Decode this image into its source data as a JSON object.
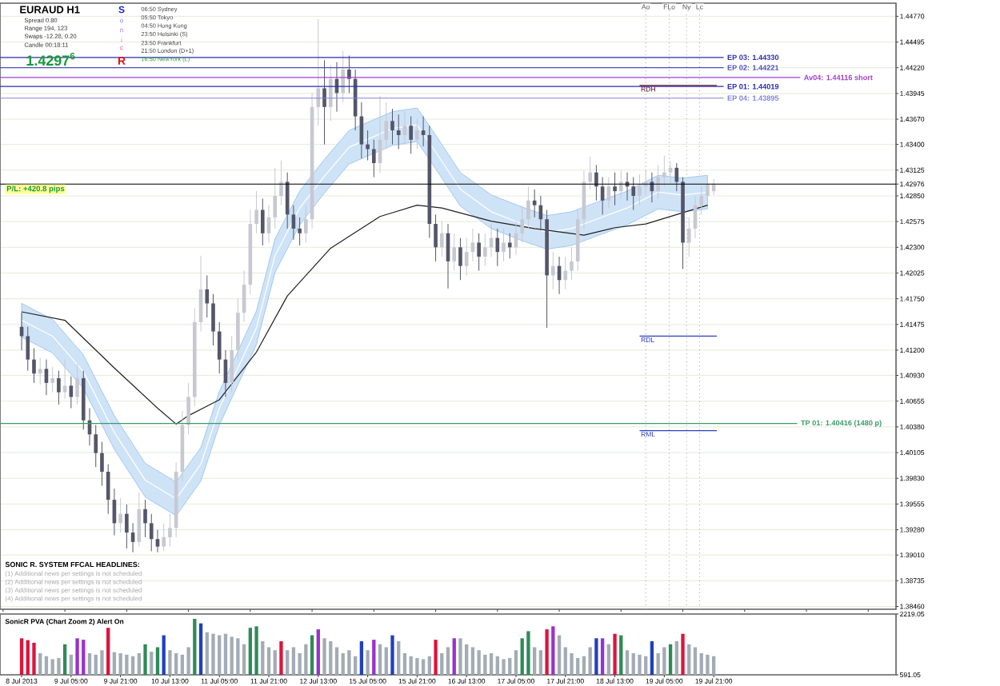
{
  "chart_data": [
    {
      "type": "candlestick",
      "title": "EURAUD  H1",
      "colors": [
        null,
        null,
        null,
        "#55556a",
        "#55556a",
        "#55556a",
        "#c8c8d2",
        "#55556a",
        "#c8c8d2",
        "#55556a",
        "#c8c8d2",
        "#55556a",
        "#c8c8d2",
        "#55556a",
        "#55556a",
        "#55556a",
        "#55556a",
        "#55556a",
        "#55556a",
        "#c8c8d2",
        "#55556a",
        "#55556a",
        "#c8c8d2",
        "#55556a",
        "#55556a",
        "#55556a",
        "#c8c8d2",
        "#c8c8d2",
        "#c8c8d2",
        "#c8c8d2",
        "#c8c8d2",
        "#c8c8d2",
        "#c8c8d2",
        "#55556a",
        "#55556a",
        "#55556a",
        "#55556a",
        "#c8c8d2",
        "#c8c8d2",
        "#c8c8d2",
        "#c8c8d2",
        "#c8c8d2",
        "#55556a",
        "#c8c8d2",
        "#c8c8d2",
        "#c8c8d2",
        "#55556a",
        "#55556a",
        "#55556a",
        "#c8c8d2",
        "#c8c8d2",
        "#c8c8d2",
        "#55556a",
        "#c8c8d2",
        "#55556a",
        "#c8c8d2",
        "#55556a",
        "#55556a",
        "#55556a",
        "#55556a",
        "#55556a",
        "#c8c8d2",
        "#c8c8d2",
        "#55556a",
        "#55556a",
        "#c8c8d2",
        "#55556a",
        "#c8c8d2",
        "#55556a",
        "#55556a",
        "#55556a",
        "#c8c8d2",
        "#55556a",
        "#c8c8d2",
        "#55556a",
        "#c8c8d2",
        "#c8c8d2",
        "#55556a",
        "#c8c8d2",
        "#c8c8d2",
        "#55556a",
        "#c8c8d2",
        "#55556a",
        "#c8c8d2",
        "#c8c8d2",
        "#c8c8d2",
        "#55556a",
        "#55556a",
        "#55556a",
        "#c8c8d2",
        "#55556a",
        "#c8c8d2",
        "#c8c8d2",
        "#c8c8d2",
        "#c8c8d2",
        "#c8c8d2",
        "#55556a",
        "#55556a",
        "#c8c8d2",
        "#55556a",
        "#c8c8d2",
        "#55556a",
        "#55556a",
        "#c8c8d2",
        "#c8c8d2",
        "#55556a",
        "#c8c8d2",
        "#c8c8d2",
        "#c8c8d2",
        "#55556a",
        "#55556a",
        "#c8c8d2",
        "#c8c8d2",
        "#c8c8d2",
        "#c8c8d2",
        "#c8c8d2",
        null,
        null,
        null,
        null,
        null,
        null,
        null,
        null,
        null,
        null,
        null,
        null,
        null,
        null,
        null,
        null,
        null,
        null,
        null,
        null,
        null,
        null,
        null,
        null,
        null,
        null,
        null,
        null,
        null
      ],
      "categories": [
        null,
        null,
        null,
        null,
        null,
        null,
        null,
        null,
        null,
        null,
        null,
        null,
        null,
        null,
        null,
        null,
        null,
        null,
        null,
        null,
        null,
        null,
        null,
        null,
        null,
        null,
        null,
        null,
        null,
        null,
        null,
        null,
        null,
        null,
        null,
        null,
        null,
        null,
        null,
        null,
        null,
        null,
        null,
        null,
        null,
        null,
        null,
        null,
        null,
        null,
        null,
        null,
        null,
        null,
        null,
        null,
        null,
        null,
        null,
        null,
        null,
        null,
        null,
        null,
        null,
        null,
        null,
        null,
        null,
        null,
        null,
        null,
        null,
        null,
        null,
        null,
        null,
        null,
        null,
        null,
        null,
        null,
        null,
        null,
        null,
        null,
        null,
        null,
        null,
        null,
        null,
        null,
        null,
        null,
        null,
        null,
        null,
        null,
        null,
        null,
        null,
        null,
        null,
        null,
        null,
        null,
        null,
        null,
        null,
        null,
        null,
        null,
        null,
        null,
        null,
        null,
        null,
        null,
        null,
        null,
        null,
        null,
        null,
        null,
        null,
        null,
        null,
        null,
        null,
        null,
        null,
        null,
        null,
        null,
        null,
        null,
        null,
        null,
        null,
        null,
        null,
        null,
        null,
        null,
        null
      ],
      "ohlc": [
        null,
        null,
        null,
        [
          1.4145,
          1.416,
          1.412,
          1.4135
        ],
        [
          1.4135,
          1.4145,
          1.4098,
          1.411
        ],
        [
          1.411,
          1.4122,
          1.4085,
          1.4095
        ],
        [
          1.4095,
          1.4112,
          1.4083,
          1.41
        ],
        [
          1.41,
          1.411,
          1.4072,
          1.4085
        ],
        [
          1.4085,
          1.4102,
          1.4075,
          1.409
        ],
        [
          1.409,
          1.4098,
          1.4062,
          1.4075
        ],
        [
          1.4075,
          1.411,
          1.4068,
          1.4082
        ],
        [
          1.4082,
          1.4092,
          1.4058,
          1.407
        ],
        [
          1.407,
          1.4105,
          1.4062,
          1.409
        ],
        [
          1.409,
          1.4098,
          1.4035,
          1.4045
        ],
        [
          1.4045,
          1.4058,
          1.4018,
          1.403
        ],
        [
          1.403,
          1.404,
          1.3995,
          1.401
        ],
        [
          1.401,
          1.4022,
          1.3975,
          1.399
        ],
        [
          1.399,
          1.3998,
          1.3945,
          1.396
        ],
        [
          1.396,
          1.3972,
          1.3922,
          1.3935
        ],
        [
          1.3935,
          1.3962,
          1.3925,
          1.3945
        ],
        [
          1.3945,
          1.3955,
          1.3908,
          1.3925
        ],
        [
          1.3925,
          1.3935,
          1.3904,
          1.3915
        ],
        [
          1.3915,
          1.3968,
          1.391,
          1.395
        ],
        [
          1.395,
          1.396,
          1.392,
          1.3935
        ],
        [
          1.3935,
          1.3945,
          1.3905,
          1.3918
        ],
        [
          1.3918,
          1.3928,
          1.3904,
          1.391
        ],
        [
          1.391,
          1.3935,
          1.3905,
          1.392
        ],
        [
          1.392,
          1.3945,
          1.391,
          1.393
        ],
        [
          1.393,
          1.4,
          1.392,
          1.399
        ],
        [
          1.399,
          1.4055,
          1.398,
          1.404
        ],
        [
          1.404,
          1.4085,
          1.403,
          1.407
        ],
        [
          1.407,
          1.4165,
          1.406,
          1.415
        ],
        [
          1.415,
          1.4221,
          1.414,
          1.4185
        ],
        [
          1.4185,
          1.42,
          1.4155,
          1.417
        ],
        [
          1.417,
          1.418,
          1.4125,
          1.414
        ],
        [
          1.414,
          1.415,
          1.4095,
          1.411
        ],
        [
          1.411,
          1.412,
          1.407,
          1.4085
        ],
        [
          1.4085,
          1.4135,
          1.4075,
          1.412
        ],
        [
          1.412,
          1.4175,
          1.411,
          1.416
        ],
        [
          1.416,
          1.4205,
          1.415,
          1.419
        ],
        [
          1.419,
          1.427,
          1.418,
          1.4255
        ],
        [
          1.4255,
          1.429,
          1.4245,
          1.427
        ],
        [
          1.427,
          1.4282,
          1.4232,
          1.4245
        ],
        [
          1.4245,
          1.4275,
          1.4235,
          1.4262
        ],
        [
          1.4262,
          1.4315,
          1.425,
          1.4285
        ],
        [
          1.4285,
          1.4323,
          1.4275,
          1.43
        ],
        [
          1.43,
          1.431,
          1.425,
          1.4265
        ],
        [
          1.4265,
          1.4275,
          1.4238,
          1.425
        ],
        [
          1.425,
          1.4262,
          1.4232,
          1.4245
        ],
        [
          1.4245,
          1.4275,
          1.4235,
          1.426
        ],
        [
          1.426,
          1.4395,
          1.425,
          1.438
        ],
        [
          1.438,
          1.4474,
          1.436,
          1.44
        ],
        [
          1.44,
          1.443,
          1.434,
          1.438
        ],
        [
          1.438,
          1.4425,
          1.4365,
          1.441
        ],
        [
          1.441,
          1.4428,
          1.4375,
          1.4395
        ],
        [
          1.4395,
          1.444,
          1.4385,
          1.442
        ],
        [
          1.442,
          1.4435,
          1.4395,
          1.441
        ],
        [
          1.441,
          1.442,
          1.4355,
          1.437
        ],
        [
          1.437,
          1.4385,
          1.4325,
          1.434
        ],
        [
          1.434,
          1.4355,
          1.4323,
          1.4335
        ],
        [
          1.4335,
          1.4345,
          1.4305,
          1.432
        ],
        [
          1.432,
          1.4392,
          1.431,
          1.4345
        ],
        [
          1.4345,
          1.4385,
          1.4335,
          1.4365
        ],
        [
          1.4365,
          1.4378,
          1.434,
          1.4355
        ],
        [
          1.4355,
          1.4372,
          1.4335,
          1.435
        ],
        [
          1.435,
          1.4375,
          1.434,
          1.436
        ],
        [
          1.436,
          1.437,
          1.433,
          1.4345
        ],
        [
          1.4345,
          1.4368,
          1.4335,
          1.4355
        ],
        [
          1.4355,
          1.437,
          1.4338,
          1.435
        ],
        [
          1.435,
          1.436,
          1.424,
          1.4255
        ],
        [
          1.4255,
          1.4265,
          1.4215,
          1.423
        ],
        [
          1.423,
          1.4258,
          1.422,
          1.4245
        ],
        [
          1.4245,
          1.4255,
          1.4186,
          1.4215
        ],
        [
          1.4215,
          1.4245,
          1.4205,
          1.423
        ],
        [
          1.423,
          1.424,
          1.4195,
          1.421
        ],
        [
          1.421,
          1.424,
          1.42,
          1.4225
        ],
        [
          1.4225,
          1.425,
          1.4215,
          1.4235
        ],
        [
          1.4235,
          1.4245,
          1.4205,
          1.422
        ],
        [
          1.422,
          1.4245,
          1.421,
          1.423
        ],
        [
          1.423,
          1.4255,
          1.422,
          1.424
        ],
        [
          1.424,
          1.425,
          1.421,
          1.4225
        ],
        [
          1.4225,
          1.425,
          1.4215,
          1.4235
        ],
        [
          1.4235,
          1.4245,
          1.4218,
          1.423
        ],
        [
          1.423,
          1.4258,
          1.4222,
          1.4245
        ],
        [
          1.4245,
          1.4275,
          1.4235,
          1.426
        ],
        [
          1.426,
          1.4295,
          1.425,
          1.428
        ],
        [
          1.428,
          1.4292,
          1.4262,
          1.4275
        ],
        [
          1.4275,
          1.4285,
          1.4248,
          1.426
        ],
        [
          1.426,
          1.427,
          1.4144,
          1.42
        ],
        [
          1.42,
          1.4225,
          1.4185,
          1.421
        ],
        [
          1.421,
          1.422,
          1.418,
          1.4195
        ],
        [
          1.4195,
          1.422,
          1.4185,
          1.4205
        ],
        [
          1.4205,
          1.423,
          1.4195,
          1.4215
        ],
        [
          1.4215,
          1.427,
          1.4205,
          1.426
        ],
        [
          1.426,
          1.4312,
          1.425,
          1.43
        ],
        [
          1.43,
          1.4327,
          1.4292,
          1.431
        ],
        [
          1.431,
          1.4318,
          1.428,
          1.4295
        ],
        [
          1.4295,
          1.4305,
          1.4265,
          1.428
        ],
        [
          1.428,
          1.4305,
          1.4272,
          1.4295
        ],
        [
          1.4295,
          1.431,
          1.4275,
          1.429
        ],
        [
          1.429,
          1.4312,
          1.4282,
          1.43
        ],
        [
          1.43,
          1.431,
          1.428,
          1.4295
        ],
        [
          1.4295,
          1.4305,
          1.427,
          1.4285
        ],
        [
          1.4285,
          1.4308,
          1.4275,
          1.4295
        ],
        [
          1.4295,
          1.4312,
          1.4285,
          1.43
        ],
        [
          1.43,
          1.431,
          1.4278,
          1.429
        ],
        [
          1.429,
          1.4318,
          1.4282,
          1.4305
        ],
        [
          1.4305,
          1.4328,
          1.4295,
          1.431
        ],
        [
          1.431,
          1.4322,
          1.4298,
          1.4315
        ],
        [
          1.4315,
          1.432,
          1.429,
          1.43
        ],
        [
          1.43,
          1.4305,
          1.4207,
          1.4235
        ],
        [
          1.4235,
          1.4262,
          1.422,
          1.425
        ],
        [
          1.425,
          1.4285,
          1.424,
          1.4275
        ],
        [
          1.4275,
          1.4295,
          1.4265,
          1.4285
        ],
        [
          1.4285,
          1.4305,
          1.428,
          1.4298
        ],
        [
          1.429,
          1.4303,
          1.4286,
          1.4298
        ],
        null,
        null,
        null,
        null,
        null,
        null,
        null,
        null,
        null,
        null,
        null,
        null,
        null,
        null,
        null,
        null,
        null,
        null,
        null,
        null,
        null,
        null,
        null,
        null,
        null,
        null,
        null,
        null,
        null
      ],
      "series": [
        {
          "type": "line",
          "color": "#ffffff",
          "values": [
            null,
            null,
            null,
            1.4152,
            null,
            null,
            null,
            null,
            1.4135,
            null,
            null,
            null,
            null,
            1.4097,
            null,
            null,
            null,
            null,
            1.4032,
            null,
            null,
            null,
            null,
            1.3981,
            null,
            null,
            null,
            null,
            1.3961,
            null,
            null,
            null,
            1.3998,
            null,
            null,
            1.4058,
            null,
            null,
            null,
            null,
            null,
            1.4144,
            null,
            null,
            1.4221,
            null,
            null,
            null,
            1.4272,
            null,
            null,
            null,
            1.4306,
            null,
            null,
            null,
            1.4337,
            null,
            null,
            null,
            null,
            null,
            null,
            1.4357,
            null,
            null,
            null,
            1.4361,
            null,
            null,
            1.4332,
            null,
            null,
            null,
            1.4292,
            null,
            null,
            null,
            null,
            1.4268,
            null,
            null,
            null,
            null,
            1.4255,
            null,
            null,
            null,
            1.4246,
            null,
            null,
            null,
            1.425,
            null,
            null,
            null,
            1.426,
            null,
            null,
            null,
            null,
            1.4272,
            null,
            null,
            null,
            null,
            1.4289,
            null,
            null,
            null,
            1.4286,
            null,
            null,
            null,
            1.4289,
            null,
            null,
            null,
            null,
            null,
            null,
            null,
            null,
            null,
            null,
            null,
            null,
            null,
            null,
            null,
            null,
            null,
            null,
            null,
            null,
            null,
            null,
            null,
            null,
            null,
            null,
            null,
            null,
            null,
            null
          ],
          "lower": [
            null,
            null,
            null,
            1.4134,
            null,
            null,
            null,
            null,
            1.4117,
            null,
            null,
            null,
            null,
            1.4079,
            null,
            null,
            null,
            null,
            1.4014,
            null,
            null,
            null,
            null,
            1.3963,
            null,
            null,
            null,
            null,
            1.3943,
            null,
            null,
            null,
            1.398,
            null,
            null,
            1.404,
            null,
            null,
            null,
            null,
            null,
            1.4126,
            null,
            null,
            1.4203,
            null,
            null,
            null,
            1.4254,
            null,
            null,
            null,
            1.4288,
            null,
            null,
            null,
            1.4319,
            null,
            null,
            null,
            null,
            null,
            null,
            1.4339,
            null,
            null,
            null,
            1.4343,
            null,
            null,
            1.4314,
            null,
            null,
            null,
            1.4274,
            null,
            null,
            null,
            null,
            1.425,
            null,
            null,
            null,
            null,
            1.4237,
            null,
            null,
            null,
            1.4228,
            null,
            null,
            null,
            1.4232,
            null,
            null,
            null,
            1.4242,
            null,
            null,
            null,
            null,
            1.4254,
            null,
            null,
            null,
            null,
            1.4271,
            null,
            null,
            null,
            1.4268,
            null,
            null,
            null,
            1.4271,
            null,
            null,
            null,
            null,
            null,
            null,
            null,
            null,
            null,
            null,
            null,
            null,
            null,
            null,
            null,
            null,
            null,
            null,
            null,
            null,
            null,
            null,
            null,
            null,
            null,
            null,
            null,
            null,
            null,
            null
          ],
          "upper": [
            null,
            null,
            null,
            1.417,
            null,
            null,
            null,
            null,
            1.4153,
            null,
            null,
            null,
            null,
            1.4115,
            null,
            null,
            null,
            null,
            1.405,
            null,
            null,
            null,
            null,
            1.3999,
            null,
            null,
            null,
            null,
            1.3979,
            null,
            null,
            null,
            1.4016,
            null,
            null,
            1.4076,
            null,
            null,
            null,
            null,
            null,
            1.4162,
            null,
            null,
            1.4239,
            null,
            null,
            null,
            1.429,
            null,
            null,
            null,
            1.4324,
            null,
            null,
            null,
            1.4355,
            null,
            null,
            null,
            null,
            null,
            null,
            1.4375,
            null,
            null,
            null,
            1.4379,
            null,
            null,
            1.435,
            null,
            null,
            null,
            1.431,
            null,
            null,
            null,
            null,
            1.4286,
            null,
            null,
            null,
            null,
            1.4273,
            null,
            null,
            null,
            1.4264,
            null,
            null,
            null,
            1.4268,
            null,
            null,
            null,
            1.4278,
            null,
            null,
            null,
            null,
            1.429,
            null,
            null,
            null,
            null,
            1.4307,
            null,
            null,
            null,
            1.4304,
            null,
            null,
            null,
            1.4307,
            null,
            null,
            null,
            null,
            null,
            null,
            null,
            null,
            null,
            null,
            null,
            null,
            null,
            null,
            null,
            null,
            null,
            null,
            null,
            null,
            null,
            null,
            null,
            null,
            null,
            null,
            null,
            null,
            null,
            null
          ]
        },
        {
          "type": "line",
          "color": "#202020",
          "values": [
            null,
            null,
            null,
            1.4161,
            null,
            null,
            null,
            null,
            null,
            null,
            1.4152,
            null,
            null,
            null,
            null,
            null,
            null,
            null,
            1.4101,
            null,
            null,
            null,
            null,
            null,
            null,
            1.4058,
            null,
            null,
            1.4041,
            null,
            1.405,
            null,
            null,
            null,
            null,
            1.4067,
            null,
            null,
            null,
            null,
            null,
            1.4118,
            null,
            null,
            null,
            null,
            1.4178,
            null,
            null,
            null,
            null,
            null,
            null,
            1.4229,
            null,
            null,
            null,
            null,
            null,
            null,
            null,
            1.4263,
            null,
            null,
            null,
            null,
            null,
            1.4275,
            null,
            null,
            null,
            1.4272,
            null,
            null,
            null,
            null,
            null,
            null,
            null,
            1.4258,
            null,
            null,
            null,
            null,
            null,
            null,
            1.425,
            null,
            null,
            null,
            null,
            null,
            null,
            null,
            1.4243,
            null,
            null,
            null,
            null,
            1.4251,
            null,
            null,
            null,
            null,
            1.4255,
            null,
            null,
            null,
            null,
            1.4265,
            null,
            null,
            null,
            null,
            1.4275,
            null,
            null,
            null,
            null,
            null,
            null,
            null,
            null,
            null,
            null,
            null,
            null,
            null,
            null,
            null,
            null,
            null,
            null,
            null,
            null,
            null,
            null,
            null,
            null,
            null,
            null,
            null,
            null,
            null,
            null
          ]
        }
      ],
      "ylim": [
        1.3843,
        1.4491
      ],
      "yticks": [
        {
          "value": 1.4477,
          "label": "1.44770"
        },
        {
          "value": 1.44495,
          "label": "1.44495"
        },
        {
          "value": 1.4422,
          "label": "1.44220"
        },
        {
          "value": 1.43945,
          "label": "1.43945"
        },
        {
          "value": 1.4367,
          "label": "1.43670"
        },
        {
          "value": 1.434,
          "label": "1.43400"
        },
        {
          "value": 1.43125,
          "label": "1.43125"
        },
        {
          "value": 1.42976,
          "label": "1.42976"
        },
        {
          "value": 1.4285,
          "label": "1.42850"
        },
        {
          "value": 1.42575,
          "label": "1.42575"
        },
        {
          "value": 1.423,
          "label": "1.42300"
        },
        {
          "value": 1.42025,
          "label": "1.42025"
        },
        {
          "value": 1.4175,
          "label": "1.41750"
        },
        {
          "value": 1.41475,
          "label": "1.41475"
        },
        {
          "value": 1.412,
          "label": "1.41200"
        },
        {
          "value": 1.4093,
          "label": "1.40930"
        },
        {
          "value": 1.40655,
          "label": "1.40655"
        },
        {
          "value": 1.4038,
          "label": "1.40380"
        },
        {
          "value": 1.40105,
          "label": "1.40105"
        },
        {
          "value": 1.3983,
          "label": "1.39830"
        },
        {
          "value": 1.39555,
          "label": "1.39555"
        },
        {
          "value": 1.3928,
          "label": "1.39280"
        },
        {
          "value": 1.3901,
          "label": "1.39010"
        },
        {
          "value": 1.38735,
          "label": "1.38735"
        },
        {
          "value": 1.3846,
          "label": "1.38460"
        }
      ],
      "tick_labels": "y",
      "grid": "y",
      "ref_lines": [
        {
          "axis": "y",
          "value": 1.4433,
          "label": "EP 03:  1.44330",
          "color": "#2b2bb0"
        },
        {
          "axis": "y",
          "value": 1.44221,
          "label": "EP 02:  1.44221",
          "color": "#5050c0"
        },
        {
          "axis": "y",
          "value": 1.44116,
          "label": "Av04:  1.44116   short",
          "color": "#a040d0"
        },
        {
          "axis": "y",
          "value": 1.44019,
          "label": "EP 01:  1.44019",
          "color": "#2b2bb0"
        },
        {
          "axis": "y",
          "value": 1.43895,
          "label": "EP 04:  1.43895",
          "color": "#8080e0"
        },
        {
          "axis": "y",
          "value": 1.40416,
          "label": "TP 01:  1.40416   (1480 p)",
          "color": "#3a9a6a"
        },
        {
          "axis": "y",
          "value": 1.42976,
          "label": "P/L: +420.8 pips",
          "color": "#000000"
        },
        {
          "axis": "y",
          "value": 1.4403,
          "label": "RDH",
          "color": "#5a1030"
        },
        {
          "axis": "y",
          "value": 1.4135,
          "label": "RDL",
          "color": "#2f3fbf"
        },
        {
          "axis": "y",
          "value": 1.4034,
          "label": "RML",
          "color": "#2f3fbf"
        }
      ],
      "annotations": [
        "Spread   0.80",
        "Range   194, 123",
        "Swaps   -12.28, 0.20",
        "Candle   00:18:11",
        "1.4297$^{6}$",
        "S",
        "o",
        "n",
        "i",
        "c",
        "R",
        "06:50   Sydney",
        "05:50   Tokyo",
        "04:50   Hong Kong",
        "23:50   Helsinki  (S)",
        "23:50   Frankfurt",
        "21:50   London  (D+1)",
        "16:50   NewYork  (L)",
        "SONIC R. SYSTEM  FFCAL HEADLINES:",
        "(1)  Additional news per settings is not scheduled",
        "(2)  Additional news per settings is not scheduled",
        "(3)  Additional news per settings is not scheduled",
        "(4)  Additional news per settings is not scheduled",
        "Ao",
        "FLo",
        "Ny",
        "Lc"
      ]
    },
    {
      "type": "bar",
      "title": "SonicR PVA  (Chart Zoom 2)   Alert On",
      "categories": [
        null,
        null,
        null,
        "8 Jul 2013",
        null,
        null,
        null,
        null,
        null,
        null,
        null,
        "9 Jul 05:00",
        null,
        null,
        null,
        null,
        null,
        null,
        null,
        "9 Jul 21:00",
        null,
        null,
        null,
        null,
        null,
        null,
        null,
        "10 Jul 13:00",
        null,
        null,
        null,
        null,
        null,
        null,
        null,
        "11 Jul 05:00",
        null,
        null,
        null,
        null,
        null,
        null,
        null,
        "11 Jul 21:00",
        null,
        null,
        null,
        null,
        null,
        null,
        null,
        "12 Jul 13:00",
        null,
        null,
        null,
        null,
        null,
        null,
        null,
        "15 Jul 05:00",
        null,
        null,
        null,
        null,
        null,
        null,
        null,
        "15 Jul 21:00",
        null,
        null,
        null,
        null,
        null,
        null,
        null,
        "16 Jul 13:00",
        null,
        null,
        null,
        null,
        null,
        null,
        null,
        "17 Jul 05:00",
        null,
        null,
        null,
        null,
        null,
        null,
        null,
        "17 Jul 21:00",
        null,
        null,
        null,
        null,
        null,
        null,
        null,
        "18 Jul 13:00",
        null,
        null,
        null,
        null,
        null,
        null,
        null,
        "19 Jul 05:00",
        null,
        null,
        null,
        null,
        null,
        null,
        null,
        "19 Jul 21:00",
        null,
        null,
        null,
        null,
        null,
        null,
        null,
        null,
        null,
        null,
        null,
        null,
        null,
        null,
        null,
        null,
        null,
        null,
        null,
        null,
        null,
        null,
        null,
        null,
        null,
        null,
        null,
        null,
        null
      ],
      "values": [
        null,
        null,
        null,
        1570,
        1520,
        1450,
        1170,
        1090,
        1010,
        1040,
        1410,
        1130,
        1570,
        1530,
        1170,
        1130,
        1250,
        1850,
        1200,
        1170,
        1130,
        1090,
        1170,
        1410,
        1210,
        1330,
        1650,
        1250,
        1170,
        1130,
        1330,
        2090,
        1970,
        1730,
        1690,
        1650,
        1690,
        1610,
        1570,
        1410,
        1850,
        1890,
        1490,
        1330,
        1250,
        1490,
        1250,
        1330,
        1170,
        1410,
        1650,
        1810,
        1570,
        1490,
        1330,
        1170,
        1250,
        1090,
        1490,
        1250,
        1530,
        1410,
        1330,
        1650,
        1490,
        1170,
        1090,
        1040,
        1010,
        1090,
        1530,
        1170,
        1330,
        1570,
        1570,
        1410,
        1330,
        1250,
        1130,
        1170,
        1090,
        1010,
        1040,
        1250,
        1570,
        1760,
        1330,
        1250,
        1810,
        1890,
        1650,
        1330,
        1170,
        1040,
        1090,
        1330,
        1570,
        1570,
        1410,
        1690,
        1650,
        1250,
        1170,
        1130,
        1090,
        1490,
        1170,
        1330,
        1410,
        1490,
        1690,
        1410,
        1330,
        1170,
        1130,
        1090,
        null,
        null,
        null,
        null,
        null,
        null,
        null,
        null,
        null,
        null,
        null,
        null,
        null,
        null,
        null,
        null,
        null,
        null,
        null,
        null,
        null,
        null,
        null,
        null,
        null,
        null,
        null,
        null,
        null
      ],
      "colors": [
        null,
        null,
        null,
        "#dc143c",
        "#dc143c",
        "#dc143c",
        "#a3acb5",
        "#a3acb5",
        "#a3acb5",
        "#a3acb5",
        "#2e8b57",
        "#a3acb5",
        "#9932cc",
        "#9932cc",
        "#a3acb5",
        "#a3acb5",
        "#a3acb5",
        "#dc143c",
        "#a3acb5",
        "#a3acb5",
        "#a3acb5",
        "#a3acb5",
        "#a3acb5",
        "#2e8b57",
        "#a3acb5",
        "#2e8b57",
        "#2040c0",
        "#a3acb5",
        "#a3acb5",
        "#a3acb5",
        "#a3acb5",
        "#2e8b57",
        "#2040c0",
        "#a3acb5",
        "#a3acb5",
        "#a3acb5",
        "#a3acb5",
        "#a3acb5",
        "#a3acb5",
        "#a3acb5",
        "#2e8b57",
        "#2e8b57",
        "#a3acb5",
        "#a3acb5",
        "#a3acb5",
        "#dc143c",
        "#a3acb5",
        "#a3acb5",
        "#a3acb5",
        "#a3acb5",
        "#2e8b57",
        "#9932cc",
        "#a3acb5",
        "#a3acb5",
        "#a3acb5",
        "#a3acb5",
        "#a3acb5",
        "#a3acb5",
        "#2040c0",
        "#a3acb5",
        "#9932cc",
        "#a3acb5",
        "#a3acb5",
        "#2040c0",
        "#a3acb5",
        "#a3acb5",
        "#a3acb5",
        "#a3acb5",
        "#a3acb5",
        "#a3acb5",
        "#dc143c",
        "#a3acb5",
        "#a3acb5",
        "#9932cc",
        "#a3acb5",
        "#a3acb5",
        "#a3acb5",
        "#a3acb5",
        "#a3acb5",
        "#a3acb5",
        "#a3acb5",
        "#a3acb5",
        "#a3acb5",
        "#a3acb5",
        "#2e8b57",
        "#2e8b57",
        "#a3acb5",
        "#a3acb5",
        "#dc143c",
        "#9932cc",
        "#a3acb5",
        "#a3acb5",
        "#a3acb5",
        "#a3acb5",
        "#a3acb5",
        "#a3acb5",
        "#2040c0",
        "#9932cc",
        "#a3acb5",
        "#dc143c",
        "#2e8b57",
        "#a3acb5",
        "#a3acb5",
        "#a3acb5",
        "#a3acb5",
        "#2040c0",
        "#a3acb5",
        "#a3acb5",
        "#2e8b57",
        "#a3acb5",
        "#dc143c",
        "#a3acb5",
        "#a3acb5",
        "#a3acb5",
        "#a3acb5",
        "#a3acb5",
        null,
        null,
        null,
        null,
        null,
        null,
        null,
        null,
        null,
        null,
        null,
        null,
        null,
        null,
        null,
        null,
        null,
        null,
        null,
        null,
        null,
        null,
        null,
        null,
        null,
        null,
        null,
        null,
        null
      ],
      "ylim": [
        591.05,
        2219.05
      ],
      "yticks": [
        {
          "value": 2219.05,
          "label": "2219.05"
        },
        {
          "value": 591.05,
          "label": "591.05"
        }
      ]
    }
  ]
}
